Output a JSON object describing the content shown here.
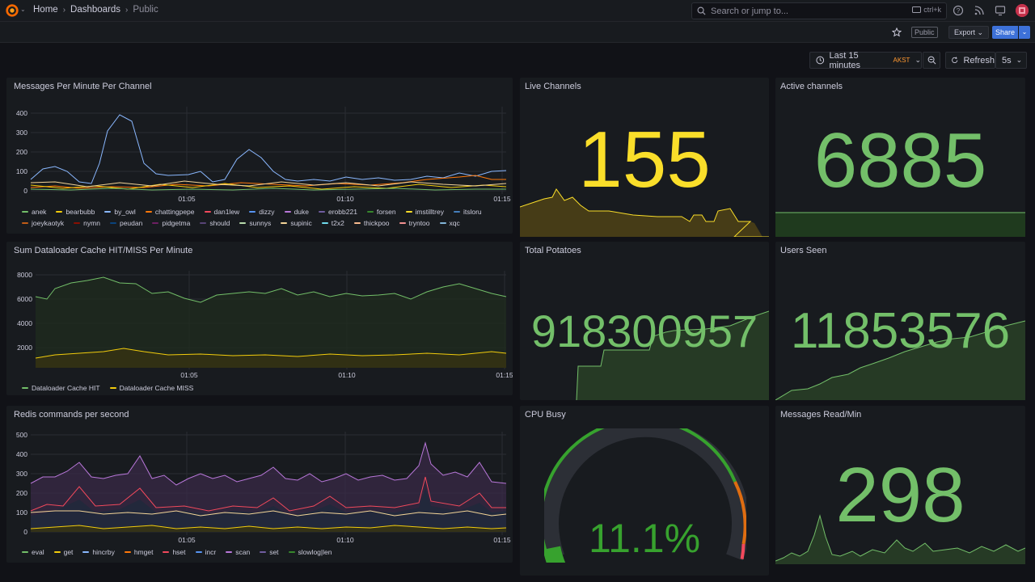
{
  "nav": {
    "breadcrumbs": [
      "Home",
      "Dashboards",
      "Public"
    ],
    "search_placeholder": "Search or jump to...",
    "search_shortcut": "ctrl+k"
  },
  "toolbar": {
    "public_tag": "Public",
    "export_label": "Export",
    "share_label": "Share"
  },
  "timepicker": {
    "range_label": "Last 15 minutes",
    "timezone": "AKST",
    "refresh_label": "Refresh",
    "refresh_interval": "5s"
  },
  "panels": {
    "messages_per_minute": {
      "title": "Messages Per Minute Per Channel",
      "y_ticks": [
        "400",
        "300",
        "200",
        "100",
        "0"
      ],
      "x_ticks": [
        "01:05",
        "01:10",
        "01:15"
      ],
      "legend": [
        {
          "name": "anek",
          "color": "#73bf69"
        },
        {
          "name": "bearbubb",
          "color": "#f2cc0c"
        },
        {
          "name": "by_owl",
          "color": "#8ab8ff"
        },
        {
          "name": "chattingpepe",
          "color": "#ff780a"
        },
        {
          "name": "dan1lew",
          "color": "#f2495c"
        },
        {
          "name": "dizzy",
          "color": "#5794f2"
        },
        {
          "name": "duke",
          "color": "#b877d9"
        },
        {
          "name": "erobb221",
          "color": "#705da0"
        },
        {
          "name": "forsen",
          "color": "#37872d"
        },
        {
          "name": "imstilltrey",
          "color": "#fade2a"
        },
        {
          "name": "itsloru",
          "color": "#447ebc"
        },
        {
          "name": "joeykaotyk",
          "color": "#c15c17"
        },
        {
          "name": "nymn",
          "color": "#890f02"
        },
        {
          "name": "peudan",
          "color": "#0a437c"
        },
        {
          "name": "pidgetma",
          "color": "#6d1f62"
        },
        {
          "name": "should",
          "color": "#584477"
        },
        {
          "name": "sunnys",
          "color": "#b7dbab"
        },
        {
          "name": "supinic",
          "color": "#f4d598"
        },
        {
          "name": "t2x2",
          "color": "#70dbed"
        },
        {
          "name": "thickpoo",
          "color": "#f9ba8f"
        },
        {
          "name": "tryntoo",
          "color": "#f29191"
        },
        {
          "name": "xqc",
          "color": "#82b5d8"
        }
      ]
    },
    "live_channels": {
      "title": "Live Channels",
      "value": "155",
      "color": "#fade2a"
    },
    "active_channels": {
      "title": "Active channels",
      "value": "6885",
      "color": "#73bf69"
    },
    "dataloader": {
      "title": "Sum Dataloader Cache HIT/MISS Per Minute",
      "y_ticks": [
        "8000",
        "6000",
        "4000",
        "2000"
      ],
      "x_ticks": [
        "01:05",
        "01:10",
        "01:15"
      ],
      "legend": [
        {
          "name": "Dataloader Cache HIT",
          "color": "#73bf69"
        },
        {
          "name": "Dataloader Cache MISS",
          "color": "#f2cc0c"
        }
      ]
    },
    "total_potatoes": {
      "title": "Total Potatoes",
      "value": "918300957",
      "color": "#73bf69"
    },
    "users_seen": {
      "title": "Users Seen",
      "value": "11853576",
      "color": "#73bf69"
    },
    "redis": {
      "title": "Redis commands per second",
      "y_ticks": [
        "500",
        "400",
        "300",
        "200",
        "100",
        "0"
      ],
      "x_ticks": [
        "01:05",
        "01:10",
        "01:15"
      ],
      "legend": [
        {
          "name": "eval",
          "color": "#73bf69"
        },
        {
          "name": "get",
          "color": "#f2cc0c"
        },
        {
          "name": "hincrby",
          "color": "#8ab8ff"
        },
        {
          "name": "hmget",
          "color": "#ff780a"
        },
        {
          "name": "hset",
          "color": "#f2495c"
        },
        {
          "name": "incr",
          "color": "#5794f2"
        },
        {
          "name": "scan",
          "color": "#b877d9"
        },
        {
          "name": "set",
          "color": "#705da0"
        },
        {
          "name": "slowlog|len",
          "color": "#37872d"
        }
      ]
    },
    "cpu_busy": {
      "title": "CPU Busy",
      "value": "11.1%",
      "percent": 11.1,
      "color": "#37a22e"
    },
    "messages_read": {
      "title": "Messages Read/Min",
      "value": "298",
      "color": "#73bf69"
    }
  }
}
